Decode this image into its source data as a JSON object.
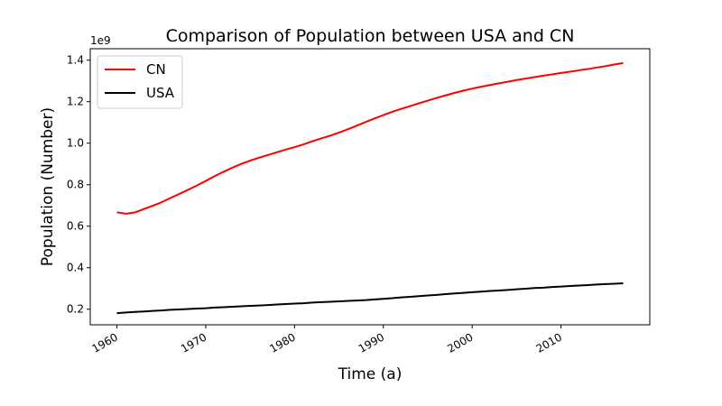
{
  "chart_data": {
    "type": "line",
    "title": "Comparison of Population between USA and CN",
    "xlabel": "Time (a)",
    "ylabel": "Population (Number)",
    "y_offset_label": "1e9",
    "xlim": [
      1957,
      2020
    ],
    "ylim": [
      0.125,
      1.455
    ],
    "x_ticks": [
      1960,
      1970,
      1980,
      1990,
      2000,
      2010
    ],
    "y_ticks": [
      0.2,
      0.4,
      0.6,
      0.8,
      1.0,
      1.2,
      1.4
    ],
    "y_tick_labels": [
      "0.2",
      "0.4",
      "0.6",
      "0.8",
      "1.0",
      "1.2",
      "1.4"
    ],
    "grid": false,
    "legend": "top-left",
    "series": [
      {
        "name": "CN",
        "color": "#ff0000",
        "x": [
          1960,
          1961,
          1962,
          1963,
          1964,
          1965,
          1966,
          1967,
          1968,
          1969,
          1970,
          1971,
          1972,
          1973,
          1974,
          1975,
          1976,
          1977,
          1978,
          1979,
          1980,
          1981,
          1982,
          1983,
          1984,
          1985,
          1986,
          1987,
          1988,
          1989,
          1990,
          1991,
          1992,
          1993,
          1994,
          1995,
          1996,
          1997,
          1998,
          1999,
          2000,
          2001,
          2002,
          2003,
          2004,
          2005,
          2006,
          2007,
          2008,
          2009,
          2010,
          2011,
          2012,
          2013,
          2014,
          2015,
          2016,
          2017
        ],
        "values": [
          0.667,
          0.66,
          0.666,
          0.682,
          0.698,
          0.715,
          0.735,
          0.755,
          0.775,
          0.796,
          0.818,
          0.841,
          0.862,
          0.882,
          0.9,
          0.916,
          0.93,
          0.943,
          0.956,
          0.969,
          0.981,
          0.994,
          1.009,
          1.023,
          1.036,
          1.051,
          1.067,
          1.084,
          1.102,
          1.119,
          1.135,
          1.151,
          1.165,
          1.178,
          1.192,
          1.205,
          1.218,
          1.23,
          1.242,
          1.253,
          1.263,
          1.272,
          1.28,
          1.288,
          1.296,
          1.304,
          1.311,
          1.318,
          1.325,
          1.331,
          1.338,
          1.344,
          1.351,
          1.357,
          1.364,
          1.371,
          1.379,
          1.386
        ]
      },
      {
        "name": "USA",
        "color": "#000000",
        "x": [
          1960,
          1961,
          1962,
          1963,
          1964,
          1965,
          1966,
          1967,
          1968,
          1969,
          1970,
          1971,
          1972,
          1973,
          1974,
          1975,
          1976,
          1977,
          1978,
          1979,
          1980,
          1981,
          1982,
          1983,
          1984,
          1985,
          1986,
          1987,
          1988,
          1989,
          1990,
          1991,
          1992,
          1993,
          1994,
          1995,
          1996,
          1997,
          1998,
          1999,
          2000,
          2001,
          2002,
          2003,
          2004,
          2005,
          2006,
          2007,
          2008,
          2009,
          2010,
          2011,
          2012,
          2013,
          2014,
          2015,
          2016,
          2017
        ],
        "values": [
          0.181,
          0.184,
          0.187,
          0.189,
          0.192,
          0.194,
          0.197,
          0.199,
          0.201,
          0.203,
          0.205,
          0.208,
          0.21,
          0.212,
          0.214,
          0.216,
          0.218,
          0.22,
          0.223,
          0.225,
          0.227,
          0.229,
          0.232,
          0.234,
          0.236,
          0.238,
          0.24,
          0.242,
          0.244,
          0.247,
          0.25,
          0.253,
          0.257,
          0.26,
          0.263,
          0.266,
          0.269,
          0.273,
          0.276,
          0.279,
          0.282,
          0.285,
          0.288,
          0.29,
          0.293,
          0.296,
          0.299,
          0.302,
          0.304,
          0.307,
          0.309,
          0.312,
          0.314,
          0.316,
          0.319,
          0.321,
          0.323,
          0.325
        ]
      }
    ]
  }
}
